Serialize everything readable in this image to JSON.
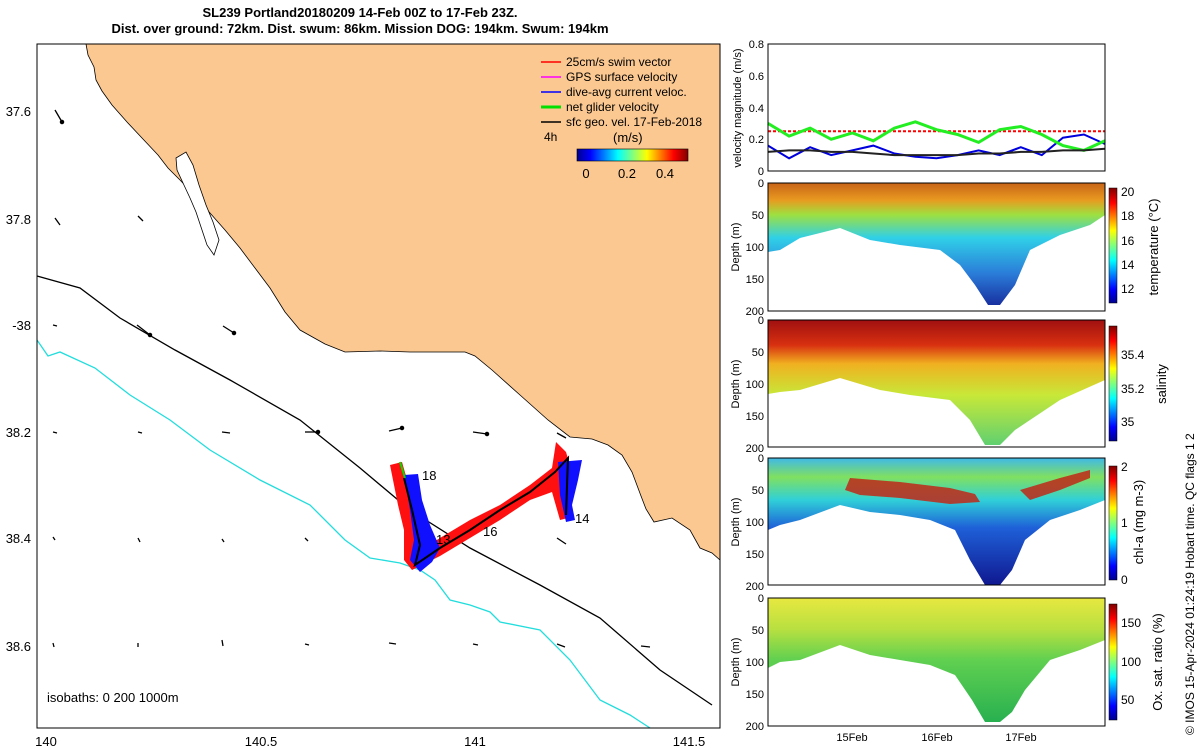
{
  "title_line1": "SL239 Portland20180209 14-Feb 00Z to 17-Feb 23Z.",
  "title_line2": "Dist. over ground: 72km. Dist. swum: 86km. Mission DOG: 194km. Swum: 194km",
  "map": {
    "lon_ticks": [
      "140",
      "140.5",
      "141",
      "141.5"
    ],
    "lat_ticks": [
      "37.6",
      "37.8",
      "-38",
      "38.2",
      "38.4",
      "38.6"
    ],
    "legend": [
      "25cm/s swim vector",
      "GPS surface velocity",
      "dive-avg current veloc.",
      "net glider velocity",
      "sfc geo. vel. 17-Feb-2018"
    ],
    "legend_colors": [
      "#ff0000",
      "#ff00ff",
      "#0000ff",
      "#00e000",
      "#000000"
    ],
    "time_label": "4h",
    "colorbar_unit": "(m/s)",
    "colorbar_ticks": [
      "0",
      "0.2",
      "0.4"
    ],
    "isobaths_label": "isobaths: 0   200  1000m",
    "day_labels": [
      "18",
      "14",
      "16",
      "13"
    ]
  },
  "chart_data": [
    {
      "type": "line",
      "ylabel": "velocity magnitude (m/s)",
      "ylim": [
        0,
        0.8
      ],
      "yticks": [
        "0",
        "0.2",
        "0.4",
        "0.6",
        "0.8"
      ],
      "x": [
        0,
        0.25,
        0.5,
        0.75,
        1.0,
        1.25,
        1.5,
        1.75,
        2.0,
        2.25,
        2.5,
        2.75,
        3.0,
        3.25,
        3.5,
        3.75,
        4.0
      ],
      "series": [
        {
          "name": "25cm/s swim vector",
          "color": "#ff0000",
          "values": [
            0.25,
            0.25,
            0.25,
            0.25,
            0.25,
            0.25,
            0.25,
            0.25,
            0.25,
            0.25,
            0.25,
            0.25,
            0.25,
            0.25,
            0.25,
            0.25,
            0.25
          ]
        },
        {
          "name": "dive-avg current veloc.",
          "color": "#0000dd",
          "values": [
            0.16,
            0.08,
            0.15,
            0.1,
            0.13,
            0.16,
            0.11,
            0.09,
            0.08,
            0.1,
            0.13,
            0.1,
            0.15,
            0.1,
            0.21,
            0.23,
            0.17
          ]
        },
        {
          "name": "net glider velocity",
          "color": "#22ee22",
          "values": [
            0.3,
            0.22,
            0.27,
            0.2,
            0.24,
            0.19,
            0.27,
            0.31,
            0.26,
            0.23,
            0.18,
            0.26,
            0.28,
            0.23,
            0.16,
            0.13,
            0.19
          ]
        },
        {
          "name": "sfc geo. vel.",
          "color": "#222222",
          "values": [
            0.12,
            0.13,
            0.13,
            0.12,
            0.12,
            0.11,
            0.1,
            0.1,
            0.1,
            0.1,
            0.11,
            0.11,
            0.12,
            0.12,
            0.13,
            0.13,
            0.14
          ]
        }
      ]
    },
    {
      "type": "heatmap",
      "ylabel": "Depth (m)",
      "yticks": [
        "0",
        "50",
        "100",
        "150",
        "200"
      ],
      "cbar_label": "temperature (°C)",
      "cbar_ticks": [
        "12",
        "14",
        "16",
        "18",
        "20"
      ]
    },
    {
      "type": "heatmap",
      "ylabel": "Depth (m)",
      "yticks": [
        "0",
        "50",
        "100",
        "150",
        "200"
      ],
      "cbar_label": "salinity",
      "cbar_ticks": [
        "35",
        "35.2",
        "35.4"
      ]
    },
    {
      "type": "heatmap",
      "ylabel": "Depth (m)",
      "yticks": [
        "0",
        "50",
        "100",
        "150",
        "200"
      ],
      "cbar_label": "chl-a (mg m-3)",
      "cbar_ticks": [
        "0",
        "1",
        "2"
      ]
    },
    {
      "type": "heatmap",
      "ylabel": "Depth (m)",
      "yticks": [
        "0",
        "50",
        "100",
        "150",
        "200"
      ],
      "cbar_label": "Ox. sat. ratio (%)",
      "cbar_ticks": [
        "50",
        "100",
        "150"
      ],
      "xticks": [
        "15Feb",
        "16Feb",
        "17Feb"
      ]
    }
  ],
  "footer": "© IMOS 15-Apr-2024 01:24:19 Hobart time. QC flags 1  2"
}
